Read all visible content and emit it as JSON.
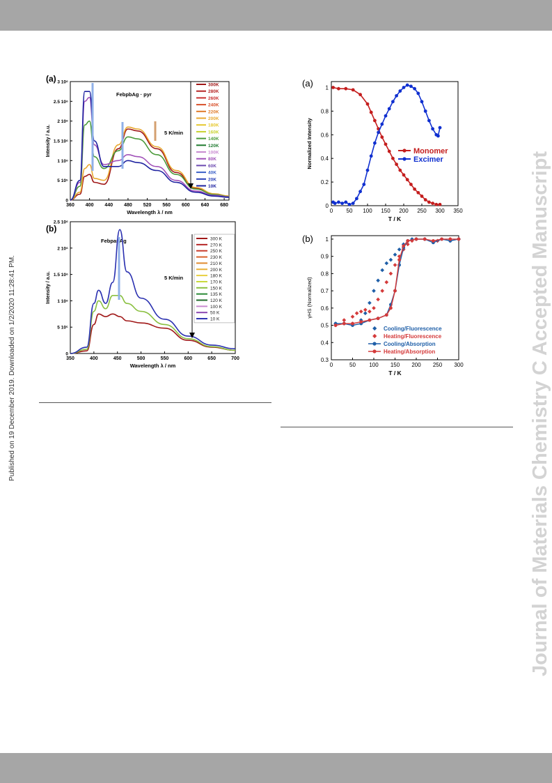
{
  "side_note": "Published on 19 December 2019. Downloaded on 1/2/2020 11:28:41 PM.",
  "watermark": "Journal of Materials Chemistry C Accepted Manuscript",
  "colors": {
    "header_bar": "#a6a6a6",
    "watermark": "#d3d3d3",
    "monomer": "#c41e1e",
    "excimer": "#1030d0",
    "cooling": "#1f5fa8",
    "heating": "#d43a3a"
  },
  "fig1": {
    "panel_a": {
      "label": "(a)",
      "compound": "FebpbAg · pyr",
      "rate": "5 K/min",
      "xlabel": "Wavelength λ / nm",
      "ylabel": "Intensity / a.u.",
      "xticks": [
        "360",
        "400",
        "440",
        "480",
        "520",
        "560",
        "600",
        "640",
        "680"
      ],
      "yticks": [
        "0",
        "5 10⁵",
        "1 10⁶",
        "1.5 10⁶",
        "2 10⁶",
        "2.5 10⁶",
        "3 10⁶"
      ],
      "legend": [
        "300K",
        "280K",
        "260K",
        "240K",
        "220K",
        "200K",
        "180K",
        "160K",
        "140K",
        "120K",
        "100K",
        "80K",
        "60K",
        "40K",
        "20K",
        "10K"
      ],
      "legend_colors": [
        "#a01818",
        "#b52424",
        "#c83030",
        "#d8502a",
        "#e07a28",
        "#e8a830",
        "#e6c82e",
        "#c8d22e",
        "#4a9a3a",
        "#1e7a2e",
        "#c88ad0",
        "#a050b8",
        "#6c4ab0",
        "#3a60c8",
        "#2a40b8",
        "#1e22a0"
      ]
    },
    "panel_b": {
      "label": "(b)",
      "compound": "FebpanAg",
      "rate": "5 K/min",
      "xlabel": "Wavelength λ / nm",
      "ylabel": "Intensity / a.u.",
      "xticks": [
        "350",
        "400",
        "450",
        "500",
        "550",
        "600",
        "650",
        "700"
      ],
      "yticks": [
        "0",
        "5 10⁵",
        "1 10⁶",
        "1.5 10⁶",
        "2 10⁶",
        "2.5 10⁶"
      ],
      "legend": [
        "300 K",
        "270 K",
        "250 K",
        "230 K",
        "210 K",
        "200 K",
        "180 K",
        "170 K",
        "150 K",
        "135 K",
        "120 K",
        "100 K",
        "50 K",
        "10 K"
      ],
      "legend_colors": [
        "#a01818",
        "#b52424",
        "#c83a2a",
        "#d8602a",
        "#e08a30",
        "#e8b038",
        "#e8d040",
        "#c8d838",
        "#8ac040",
        "#2a8a36",
        "#1e6a2a",
        "#c88ad0",
        "#8a46b0",
        "#2a30b0"
      ]
    }
  },
  "fig2": {
    "panel_a": {
      "label": "(a)",
      "xlabel": "T / K",
      "ylabel": "Normalized Intensity",
      "xticks": [
        "0",
        "50",
        "100",
        "150",
        "200",
        "250",
        "300",
        "350"
      ],
      "yticks": [
        "0",
        "0.2",
        "0.4",
        "0.6",
        "0.8",
        "1"
      ],
      "legend": [
        "Monomer",
        "Excimer"
      ]
    },
    "panel_b": {
      "label": "(b)",
      "xlabel": "T / K",
      "ylabel": "γHS (Normalized)",
      "xticks": [
        "0",
        "50",
        "100",
        "150",
        "200",
        "250",
        "300"
      ],
      "yticks": [
        "0.3",
        "0.4",
        "0.5",
        "0.6",
        "0.7",
        "0.8",
        "0.9",
        "1"
      ],
      "legend": [
        "Cooling/Fluorescence",
        "Heating/Fluorescence",
        "Cooling/Absorption",
        "Heating/Absorption"
      ]
    }
  },
  "chart_data": [
    {
      "type": "line",
      "title": "FebpbAg · pyr",
      "xlabel": "Wavelength λ / nm",
      "ylabel": "Intensity / a.u.",
      "xlim": [
        360,
        690
      ],
      "ylim": [
        0,
        3000000
      ],
      "series": [
        {
          "name": "300K",
          "x": [
            360,
            380,
            390,
            400,
            410,
            430,
            460,
            480,
            500,
            540,
            580,
            620,
            660,
            690
          ],
          "y": [
            0,
            150000,
            600000,
            650000,
            450000,
            400000,
            1300000,
            1800000,
            1750000,
            1300000,
            700000,
            300000,
            150000,
            100000
          ]
        },
        {
          "name": "200K",
          "x": [
            360,
            380,
            390,
            400,
            410,
            430,
            460,
            480,
            500,
            540,
            580,
            620,
            660,
            690
          ],
          "y": [
            0,
            200000,
            800000,
            900000,
            550000,
            500000,
            1400000,
            1850000,
            1800000,
            1350000,
            750000,
            320000,
            160000,
            100000
          ]
        },
        {
          "name": "140K",
          "x": [
            360,
            380,
            390,
            400,
            410,
            430,
            460,
            480,
            500,
            540,
            580,
            620,
            660,
            690
          ],
          "y": [
            0,
            350000,
            1900000,
            2000000,
            1100000,
            800000,
            1250000,
            1600000,
            1550000,
            1150000,
            650000,
            280000,
            140000,
            90000
          ]
        },
        {
          "name": "80K",
          "x": [
            360,
            380,
            390,
            400,
            410,
            430,
            460,
            480,
            500,
            540,
            580,
            620,
            660,
            690
          ],
          "y": [
            0,
            450000,
            2500000,
            2600000,
            1400000,
            900000,
            1000000,
            1150000,
            1100000,
            850000,
            500000,
            230000,
            120000,
            80000
          ]
        },
        {
          "name": "10K",
          "x": [
            360,
            380,
            390,
            400,
            410,
            430,
            460,
            480,
            500,
            540,
            580,
            620,
            660,
            690
          ],
          "y": [
            0,
            500000,
            2750000,
            2750000,
            1500000,
            850000,
            850000,
            1000000,
            950000,
            750000,
            450000,
            200000,
            100000,
            70000
          ]
        }
      ]
    },
    {
      "type": "line",
      "title": "FebpanAg",
      "xlabel": "Wavelength λ / nm",
      "ylabel": "Intensity / a.u.",
      "xlim": [
        350,
        700
      ],
      "ylim": [
        0,
        2500000
      ],
      "series": [
        {
          "name": "300 K",
          "x": [
            350,
            385,
            400,
            410,
            425,
            440,
            455,
            470,
            500,
            550,
            600,
            650,
            700
          ],
          "y": [
            0,
            50000,
            550000,
            750000,
            700000,
            750000,
            700000,
            620000,
            580000,
            480000,
            250000,
            120000,
            60000
          ]
        },
        {
          "name": "150 K",
          "x": [
            350,
            385,
            400,
            410,
            425,
            440,
            455,
            470,
            500,
            550,
            600,
            650,
            700
          ],
          "y": [
            0,
            80000,
            800000,
            1000000,
            850000,
            1100000,
            1100000,
            950000,
            800000,
            550000,
            280000,
            130000,
            60000
          ]
        },
        {
          "name": "10 K",
          "x": [
            350,
            385,
            400,
            410,
            425,
            440,
            455,
            470,
            500,
            550,
            600,
            650,
            700
          ],
          "y": [
            0,
            120000,
            950000,
            1200000,
            950000,
            1350000,
            2350000,
            1550000,
            1050000,
            650000,
            330000,
            160000,
            90000
          ]
        }
      ]
    },
    {
      "type": "scatter",
      "xlabel": "T / K",
      "ylabel": "Normalized Intensity",
      "xlim": [
        0,
        350
      ],
      "ylim": [
        0,
        1.05
      ],
      "legend_position": "right",
      "series": [
        {
          "name": "Monomer",
          "x": [
            5,
            20,
            40,
            60,
            80,
            100,
            110,
            120,
            130,
            140,
            150,
            160,
            170,
            180,
            190,
            200,
            210,
            220,
            230,
            240,
            250,
            260,
            270,
            280,
            290,
            300
          ],
          "y": [
            1,
            0.99,
            0.99,
            0.98,
            0.94,
            0.86,
            0.79,
            0.72,
            0.65,
            0.58,
            0.52,
            0.46,
            0.4,
            0.35,
            0.3,
            0.26,
            0.22,
            0.18,
            0.14,
            0.11,
            0.08,
            0.05,
            0.03,
            0.02,
            0.01,
            0.01
          ]
        },
        {
          "name": "Excimer",
          "x": [
            5,
            10,
            20,
            30,
            40,
            50,
            60,
            70,
            80,
            90,
            100,
            110,
            120,
            130,
            140,
            150,
            160,
            170,
            180,
            190,
            200,
            210,
            220,
            230,
            240,
            250,
            260,
            270,
            280,
            290,
            295,
            300
          ],
          "y": [
            0.03,
            0.02,
            0.03,
            0.02,
            0.03,
            0.01,
            0.02,
            0.06,
            0.12,
            0.18,
            0.3,
            0.42,
            0.53,
            0.62,
            0.69,
            0.76,
            0.82,
            0.88,
            0.93,
            0.97,
            1.0,
            1.02,
            1.01,
            0.99,
            0.95,
            0.88,
            0.8,
            0.72,
            0.65,
            0.6,
            0.59,
            0.66
          ]
        }
      ]
    },
    {
      "type": "scatter",
      "xlabel": "T / K",
      "ylabel": "γHS (Normalized)",
      "xlim": [
        0,
        300
      ],
      "ylim": [
        0.3,
        1.02
      ],
      "legend_position": "bottom-right",
      "series": [
        {
          "name": "Cooling/Fluorescence",
          "x": [
            10,
            30,
            50,
            70,
            80,
            90,
            100,
            110,
            120,
            130,
            140,
            150,
            160,
            170,
            180,
            190,
            200,
            220,
            250,
            280,
            300
          ],
          "y": [
            0.51,
            0.51,
            0.51,
            0.53,
            0.57,
            0.63,
            0.7,
            0.76,
            0.82,
            0.86,
            0.88,
            0.91,
            0.94,
            0.97,
            0.99,
            1.0,
            1.0,
            1.0,
            0.99,
            0.99,
            1.0
          ]
        },
        {
          "name": "Heating/Fluorescence",
          "x": [
            10,
            30,
            50,
            60,
            70,
            80,
            90,
            100,
            110,
            120,
            130,
            140,
            150,
            160,
            170,
            180,
            190,
            200,
            220,
            250,
            280,
            300
          ],
          "y": [
            0.5,
            0.53,
            0.55,
            0.57,
            0.58,
            0.59,
            0.58,
            0.6,
            0.65,
            0.7,
            0.75,
            0.8,
            0.85,
            0.9,
            0.94,
            0.97,
            0.99,
            1.0,
            1.0,
            0.99,
            1.0,
            1.0
          ]
        },
        {
          "name": "Cooling/Absorption",
          "x": [
            10,
            30,
            50,
            70,
            90,
            110,
            130,
            140,
            150,
            160,
            170,
            180,
            200,
            220,
            240,
            260,
            280,
            300
          ],
          "y": [
            0.51,
            0.51,
            0.5,
            0.51,
            0.53,
            0.54,
            0.56,
            0.62,
            0.7,
            0.85,
            0.95,
            0.99,
            1.0,
            1.0,
            0.98,
            1.0,
            0.99,
            1.0
          ]
        },
        {
          "name": "Heating/Absorption",
          "x": [
            10,
            30,
            50,
            70,
            90,
            110,
            130,
            140,
            150,
            160,
            170,
            180,
            200,
            220,
            240,
            260,
            280,
            300
          ],
          "y": [
            0.5,
            0.51,
            0.51,
            0.52,
            0.53,
            0.54,
            0.56,
            0.6,
            0.7,
            0.88,
            0.96,
            0.99,
            1.0,
            1.0,
            0.99,
            1.0,
            1.0,
            1.0
          ]
        }
      ]
    }
  ]
}
